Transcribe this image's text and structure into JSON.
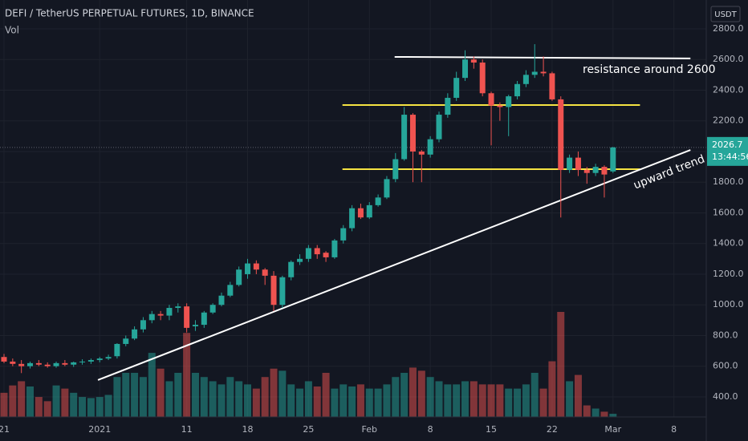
{
  "chart_data": {
    "type": "candlestick",
    "title": "DEFI / TetherUS PERPETUAL FUTURES, 1D, BINANCE",
    "volume_label": "Vol",
    "currency": "USDT",
    "x": [
      0,
      1,
      2,
      3,
      4,
      5,
      6,
      7,
      8,
      9,
      10,
      11,
      12,
      13,
      14,
      15,
      16,
      17,
      18,
      19,
      20,
      21,
      22,
      23,
      24,
      25,
      26,
      27,
      28,
      29,
      30,
      31,
      32,
      33,
      34,
      35,
      36,
      37,
      38,
      39,
      40,
      41,
      42,
      43,
      44,
      45,
      46,
      47,
      48,
      49,
      50,
      51,
      52,
      53,
      54,
      55,
      56,
      57,
      58,
      59,
      60,
      61,
      62,
      63,
      64,
      65,
      66,
      67,
      68,
      69,
      70
    ],
    "open": [
      660,
      630,
      615,
      600,
      620,
      610,
      600,
      620,
      610,
      625,
      630,
      640,
      650,
      665,
      745,
      780,
      840,
      900,
      940,
      930,
      980,
      990,
      860,
      870,
      950,
      1000,
      1060,
      1130,
      1200,
      1270,
      1230,
      1190,
      1000,
      1180,
      1280,
      1300,
      1370,
      1340,
      1310,
      1420,
      1500,
      1630,
      1570,
      1650,
      1700,
      1820,
      1950,
      2240,
      2000,
      1980,
      2080,
      2240,
      2350,
      2480,
      2600,
      2580,
      2380,
      2300,
      2290,
      2360,
      2440,
      2500,
      2520,
      2510,
      2340,
      1880,
      1960,
      1880,
      1860,
      1900,
      1870
    ],
    "high": [
      680,
      650,
      640,
      630,
      640,
      625,
      630,
      640,
      630,
      645,
      650,
      660,
      675,
      750,
      800,
      860,
      920,
      960,
      960,
      1000,
      1010,
      1010,
      900,
      960,
      1010,
      1080,
      1150,
      1250,
      1300,
      1290,
      1240,
      1220,
      1190,
      1290,
      1330,
      1390,
      1390,
      1350,
      1430,
      1520,
      1650,
      1660,
      1670,
      1720,
      1840,
      1990,
      2290,
      2250,
      2010,
      2100,
      2260,
      2380,
      2520,
      2660,
      2620,
      2600,
      2390,
      2320,
      2370,
      2460,
      2530,
      2700,
      2620,
      2520,
      2360,
      1980,
      2000,
      1900,
      1920,
      1910,
      2030
    ],
    "low": [
      620,
      600,
      555,
      585,
      600,
      590,
      590,
      600,
      595,
      610,
      615,
      625,
      640,
      650,
      730,
      770,
      820,
      880,
      900,
      900,
      950,
      820,
      830,
      850,
      940,
      990,
      1050,
      1120,
      1170,
      1200,
      1130,
      960,
      980,
      1160,
      1260,
      1280,
      1300,
      1280,
      1300,
      1400,
      1480,
      1560,
      1560,
      1640,
      1690,
      1800,
      1940,
      1800,
      1800,
      1960,
      2060,
      2220,
      2330,
      2460,
      2540,
      2360,
      2040,
      2200,
      2100,
      2340,
      2420,
      2480,
      2490,
      2330,
      1570,
      1860,
      1840,
      1790,
      1840,
      1700,
      1860
    ],
    "close": [
      630,
      615,
      600,
      620,
      610,
      600,
      620,
      610,
      625,
      630,
      640,
      650,
      660,
      745,
      780,
      840,
      900,
      940,
      930,
      980,
      990,
      850,
      870,
      950,
      1000,
      1060,
      1130,
      1230,
      1270,
      1230,
      1190,
      1000,
      1180,
      1280,
      1300,
      1370,
      1330,
      1310,
      1420,
      1500,
      1630,
      1570,
      1650,
      1700,
      1820,
      1950,
      2240,
      2000,
      1980,
      2080,
      2240,
      2350,
      2480,
      2600,
      2580,
      2380,
      2300,
      2290,
      2360,
      2440,
      2500,
      2520,
      2510,
      2340,
      1880,
      1960,
      1880,
      1860,
      1900,
      1850,
      2026.7
    ],
    "volume": [
      23,
      30,
      34,
      29,
      19,
      15,
      30,
      27,
      23,
      19,
      18,
      19,
      21,
      38,
      42,
      42,
      38,
      61,
      46,
      34,
      42,
      80,
      42,
      38,
      34,
      31,
      38,
      34,
      31,
      27,
      38,
      46,
      44,
      31,
      27,
      34,
      29,
      42,
      27,
      31,
      29,
      31,
      27,
      27,
      31,
      38,
      42,
      47,
      44,
      38,
      34,
      31,
      31,
      34,
      34,
      31,
      31,
      31,
      27,
      27,
      31,
      42,
      27,
      53,
      100,
      34,
      40,
      11,
      8,
      5,
      3
    ],
    "up_color": "#26a69a",
    "down_color": "#ef5350",
    "xlim": [
      -0.46,
      80.72
    ],
    "xticks": [
      {
        "value": 0,
        "label": "21"
      },
      {
        "value": 11,
        "label": "2021"
      },
      {
        "value": 21,
        "label": "11"
      },
      {
        "value": 28,
        "label": "18"
      },
      {
        "value": 35,
        "label": "25"
      },
      {
        "value": 42,
        "label": "Feb"
      },
      {
        "value": 49,
        "label": "8"
      },
      {
        "value": 56,
        "label": "15"
      },
      {
        "value": 63,
        "label": "22"
      },
      {
        "value": 70,
        "label": "Mar"
      },
      {
        "value": 77,
        "label": "8"
      }
    ],
    "ylim": [
      269,
      2988
    ],
    "yticks": [
      {
        "value": 400,
        "label": "400.0"
      },
      {
        "value": 600,
        "label": "600.0"
      },
      {
        "value": 800,
        "label": "800.0"
      },
      {
        "value": 1000,
        "label": "1000.0"
      },
      {
        "value": 1200,
        "label": "1200.0"
      },
      {
        "value": 1400,
        "label": "1400.0"
      },
      {
        "value": 1600,
        "label": "1600.0"
      },
      {
        "value": 1800,
        "label": "1800.0"
      },
      {
        "value": 2000,
        "label": "2000.0"
      },
      {
        "value": 2200,
        "label": "2200.0"
      },
      {
        "value": 2400,
        "label": "2400.0"
      },
      {
        "value": 2600,
        "label": "2600.0"
      },
      {
        "value": 2800,
        "label": "2800.0"
      }
    ],
    "vlim": [
      0,
      100
    ],
    "grid": true,
    "last_price": 2026.7,
    "countdown": "13:44:56",
    "lines": [
      {
        "color": "#ffffff",
        "x": [
          44.9,
          78.9
        ],
        "y": [
          2617,
          2607
        ]
      },
      {
        "color": "#f5e342",
        "x": [
          38.9,
          73.1
        ],
        "y": [
          2303,
          2303
        ]
      },
      {
        "color": "#f5e342",
        "x": [
          38.9,
          73.1
        ],
        "y": [
          1885,
          1885
        ]
      },
      {
        "color": "#ffffff",
        "x": [
          10.8,
          78.9
        ],
        "y": [
          510,
          2010
        ]
      }
    ],
    "annotations": [
      "resistance around 2600",
      "upward trend"
    ]
  }
}
